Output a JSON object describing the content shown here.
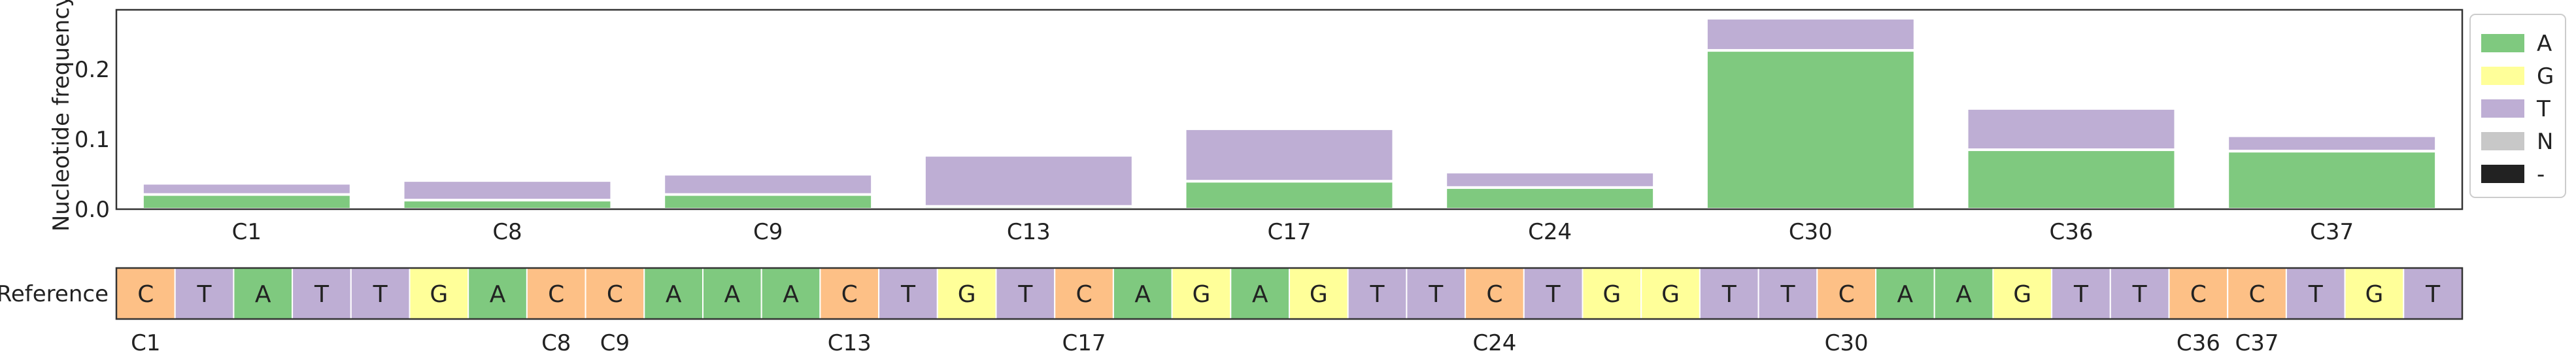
{
  "chart_data": [
    {
      "type": "bar",
      "stacked": true,
      "ylabel": "Nucleotide frequency",
      "ylim": [
        0,
        0.285
      ],
      "yticks": [
        "0.0",
        "0.1",
        "0.2"
      ],
      "grid": false,
      "legend_position": "right",
      "categories": [
        "C1",
        "C8",
        "C9",
        "C13",
        "C17",
        "C24",
        "C30",
        "C36",
        "C37"
      ],
      "series": [
        {
          "name": "A",
          "color": "#7fc97f",
          "values": [
            0.021,
            0.013,
            0.021,
            0.004,
            0.04,
            0.031,
            0.227,
            0.085,
            0.083
          ]
        },
        {
          "name": "G",
          "color": "#ffff99",
          "values": [
            0,
            0,
            0,
            0,
            0,
            0,
            0,
            0,
            0
          ]
        },
        {
          "name": "T",
          "color": "#beaed4",
          "values": [
            0.016,
            0.028,
            0.029,
            0.073,
            0.075,
            0.022,
            0.046,
            0.059,
            0.022
          ]
        },
        {
          "name": "N",
          "color": "#c8c8c8",
          "values": [
            0,
            0,
            0,
            0,
            0,
            0,
            0,
            0,
            0
          ]
        },
        {
          "name": "-",
          "color": "#222222",
          "values": [
            0,
            0,
            0,
            0,
            0,
            0,
            0,
            0,
            0
          ]
        }
      ]
    },
    {
      "type": "table",
      "row_label": "Reference",
      "sequence": [
        "C",
        "T",
        "A",
        "T",
        "T",
        "G",
        "A",
        "C",
        "C",
        "A",
        "A",
        "A",
        "C",
        "T",
        "G",
        "T",
        "C",
        "A",
        "G",
        "A",
        "G",
        "T",
        "T",
        "C",
        "T",
        "G",
        "G",
        "T",
        "T",
        "C",
        "A",
        "A",
        "G",
        "T",
        "T",
        "C",
        "C",
        "T",
        "G",
        "T"
      ],
      "colors": {
        "A": "#7fc97f",
        "C": "#fdc086",
        "G": "#ffff99",
        "T": "#beaed4"
      },
      "position_labels": [
        {
          "index": 0,
          "label": "C1"
        },
        {
          "index": 7,
          "label": "C8"
        },
        {
          "index": 8,
          "label": "C9"
        },
        {
          "index": 12,
          "label": "C13"
        },
        {
          "index": 16,
          "label": "C17"
        },
        {
          "index": 23,
          "label": "C24"
        },
        {
          "index": 29,
          "label": "C30"
        },
        {
          "index": 35,
          "label": "C36"
        },
        {
          "index": 36,
          "label": "C37"
        }
      ]
    }
  ]
}
